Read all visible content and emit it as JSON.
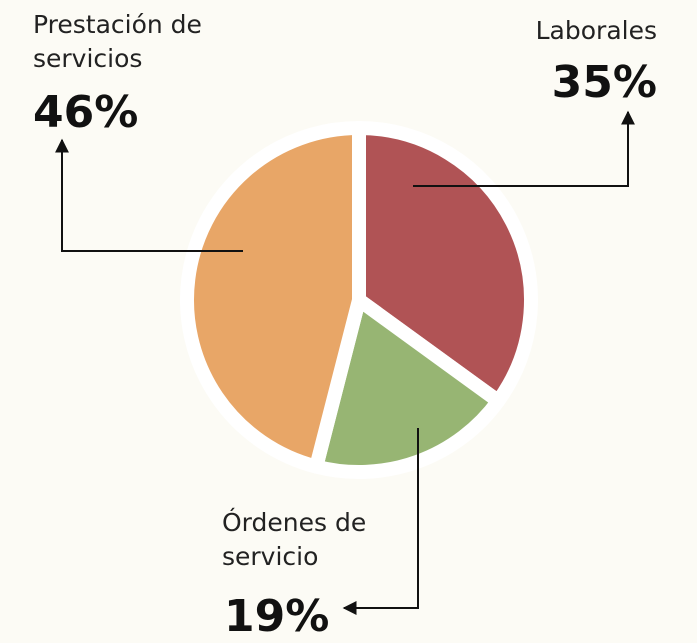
{
  "chart_data": {
    "type": "pie",
    "categories": [
      "Laborales",
      "Órdenes de servicio",
      "Prestación de servicios"
    ],
    "values": [
      35,
      19,
      46
    ],
    "value_labels": [
      "35%",
      "19%",
      "46%"
    ],
    "colors": [
      "#b05355",
      "#97b573",
      "#e8a667"
    ]
  }
}
